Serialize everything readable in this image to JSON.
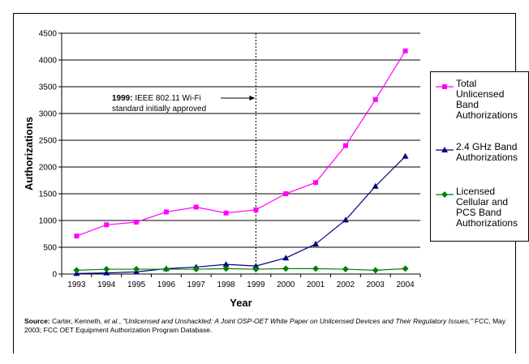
{
  "chart_data": {
    "type": "line",
    "title": "",
    "xlabel": "Year",
    "ylabel": "Authorizations",
    "x": [
      "1993",
      "1994",
      "1995",
      "1996",
      "1997",
      "1998",
      "1999",
      "2000",
      "2001",
      "2002",
      "2003",
      "2004"
    ],
    "ylim": [
      0,
      4500
    ],
    "yticks": [
      0,
      500,
      1000,
      1500,
      2000,
      2500,
      3000,
      3500,
      4000,
      4500
    ],
    "grid": true,
    "legend_position": "right",
    "series": [
      {
        "name": "Total Unlicensed Band Authorizations",
        "color": "#ff00ff",
        "marker": "square",
        "values": [
          710,
          920,
          970,
          1160,
          1250,
          1140,
          1200,
          1500,
          1710,
          2400,
          3260,
          4170
        ]
      },
      {
        "name": "2.4 GHz Band Authorizations",
        "color": "#000080",
        "marker": "triangle",
        "values": [
          10,
          20,
          40,
          100,
          130,
          180,
          150,
          300,
          560,
          1010,
          1640,
          2200
        ]
      },
      {
        "name": "Licensed Cellular and PCS Band Authorizations",
        "color": "#008000",
        "marker": "diamond",
        "values": [
          70,
          90,
          90,
          90,
          90,
          100,
          90,
          100,
          100,
          90,
          70,
          100
        ]
      }
    ],
    "annotation": {
      "bold": "1999:",
      "line1": " IEEE 802.11 Wi-Fi",
      "line2": "standard initially approved",
      "target_year": "1999",
      "ref_line_style": "dotted"
    }
  },
  "legend": {
    "items": [
      {
        "label": "Total Unlicensed Band Authorizations",
        "color": "#ff00ff",
        "marker": "square"
      },
      {
        "label": "2.4 GHz Band Authorizations",
        "color": "#000080",
        "marker": "triangle"
      },
      {
        "label": "Licensed Cellular and PCS Band Authorizations",
        "color": "#008000",
        "marker": "diamond"
      }
    ]
  },
  "source": {
    "label": "Source:",
    "text1": " Carter, Kenneth, ",
    "italic1": "et al.",
    "text2": ", ",
    "italic2": "\"Unlicensed and Unshackled: A Joint OSP-OET White Paper on Unlicensed Devices and Their Regulatory Issues,\"",
    "text3": " FCC, May 2003;  FCC OET Equipment Authorization Program Database."
  }
}
